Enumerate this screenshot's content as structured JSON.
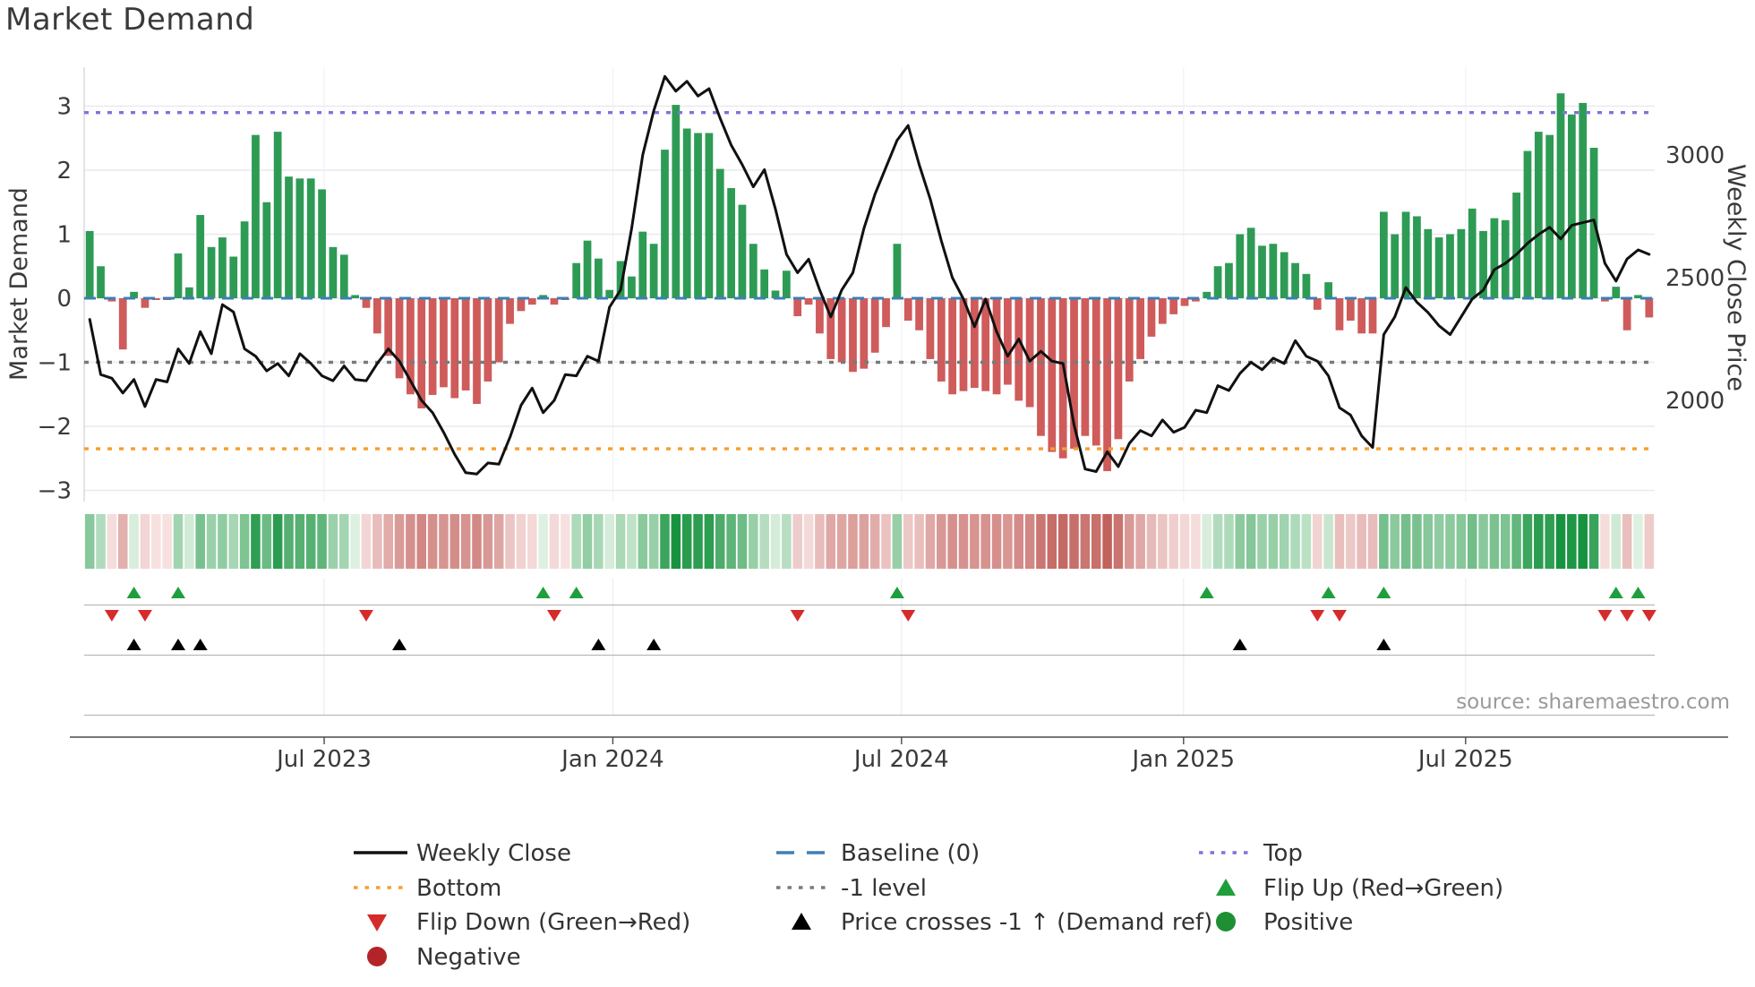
{
  "title": "Market Demand",
  "source": "source: sharemaestro.com",
  "axes": {
    "left_label": "Market Demand",
    "right_label": "Weekly Close Price",
    "left_ticks": [
      {
        "label": "3",
        "value": 3
      },
      {
        "label": "2",
        "value": 2
      },
      {
        "label": "1",
        "value": 1
      },
      {
        "label": "0",
        "value": 0
      },
      {
        "label": "−1",
        "value": -1
      },
      {
        "label": "−2",
        "value": -2
      },
      {
        "label": "−3",
        "value": -3
      }
    ],
    "right_ticks": [
      {
        "label": "3000",
        "value": 3000
      },
      {
        "label": "2500",
        "value": 2500
      },
      {
        "label": "2000",
        "value": 2000
      }
    ],
    "x_ticks": [
      {
        "label": "Jul 2023",
        "week": 21.2
      },
      {
        "label": "Jan 2024",
        "week": 47.3
      },
      {
        "label": "Jul 2024",
        "week": 73.4
      },
      {
        "label": "Jan 2025",
        "week": 98.9
      },
      {
        "label": "Jul 2025",
        "week": 124.4
      }
    ]
  },
  "chart_data": {
    "type": "bar+line",
    "x_unit": "weeks (Feb 2023 – Oct 2025)",
    "title": "Market Demand",
    "ylabel_left": "Market Demand",
    "ylabel_right": "Weekly Close Price",
    "ylim_left": [
      -3,
      3
    ],
    "grid": true,
    "legend_position": "bottom",
    "levels": {
      "top": 2.9,
      "baseline": 0,
      "minus1": -1,
      "bottom": -2.35
    },
    "series": [
      {
        "name": "Market Demand",
        "type": "bar",
        "axis": "left",
        "values": [
          1.05,
          0.5,
          -0.05,
          -0.8,
          0.1,
          -0.15,
          -0.02,
          -0.02,
          0.7,
          0.17,
          1.3,
          0.8,
          0.95,
          0.65,
          1.2,
          2.55,
          1.5,
          2.6,
          1.9,
          1.87,
          1.87,
          1.7,
          0.8,
          0.68,
          0.05,
          -0.15,
          -0.55,
          -0.9,
          -1.25,
          -1.5,
          -1.72,
          -1.51,
          -1.39,
          -1.56,
          -1.44,
          -1.65,
          -1.3,
          -1.0,
          -0.4,
          -0.2,
          -0.1,
          0.05,
          -0.1,
          -0.02,
          0.55,
          0.9,
          0.62,
          0.13,
          0.58,
          0.34,
          1.04,
          0.85,
          2.32,
          3.02,
          2.65,
          2.58,
          2.58,
          2.02,
          1.72,
          1.46,
          0.85,
          0.45,
          0.12,
          0.43,
          -0.28,
          -0.1,
          -0.55,
          -0.95,
          -1.0,
          -1.15,
          -1.1,
          -0.85,
          -0.45,
          0.85,
          -0.35,
          -0.5,
          -0.95,
          -1.3,
          -1.5,
          -1.45,
          -1.4,
          -1.45,
          -1.5,
          -1.35,
          -1.6,
          -1.7,
          -2.15,
          -2.4,
          -2.5,
          -2.35,
          -2.15,
          -2.3,
          -2.7,
          -2.2,
          -1.3,
          -0.95,
          -0.6,
          -0.4,
          -0.25,
          -0.12,
          -0.05,
          0.1,
          0.5,
          0.55,
          1.0,
          1.1,
          0.82,
          0.85,
          0.72,
          0.55,
          0.38,
          -0.18,
          0.25,
          -0.5,
          -0.35,
          -0.55,
          -0.55,
          1.35,
          1.0,
          1.35,
          1.28,
          1.08,
          0.95,
          1.0,
          1.08,
          1.4,
          1.05,
          1.25,
          1.22,
          1.65,
          2.3,
          2.6,
          2.55,
          3.2,
          2.87,
          3.05,
          2.35,
          -0.05,
          0.18,
          -0.5,
          0.05,
          -0.3
        ]
      },
      {
        "name": "Weekly Close",
        "type": "line",
        "axis": "right",
        "values": [
          2330,
          2105,
          2090,
          2030,
          2085,
          1975,
          2085,
          2075,
          2210,
          2150,
          2280,
          2190,
          2390,
          2360,
          2210,
          2180,
          2120,
          2150,
          2100,
          2190,
          2150,
          2100,
          2080,
          2140,
          2085,
          2080,
          2150,
          2210,
          2160,
          2080,
          2000,
          1950,
          1870,
          1780,
          1705,
          1700,
          1745,
          1740,
          1850,
          1980,
          2050,
          1950,
          2000,
          2105,
          2100,
          2180,
          2160,
          2380,
          2450,
          2700,
          3000,
          3180,
          3320,
          3260,
          3300,
          3240,
          3270,
          3150,
          3040,
          2960,
          2870,
          2940,
          2780,
          2595,
          2520,
          2575,
          2450,
          2340,
          2450,
          2520,
          2700,
          2840,
          2950,
          3060,
          3120,
          2960,
          2820,
          2650,
          2500,
          2413,
          2300,
          2413,
          2280,
          2180,
          2250,
          2160,
          2200,
          2160,
          2150,
          1900,
          1720,
          1710,
          1790,
          1730,
          1825,
          1877,
          1855,
          1920,
          1870,
          1890,
          1960,
          1950,
          2060,
          2040,
          2110,
          2155,
          2125,
          2172,
          2150,
          2243,
          2180,
          2160,
          2100,
          1970,
          1940,
          1855,
          1808,
          2268,
          2340,
          2460,
          2400,
          2358,
          2304,
          2268,
          2340,
          2413,
          2449,
          2533,
          2558,
          2595,
          2640,
          2676,
          2705,
          2658,
          2713,
          2724,
          2735,
          2558,
          2486,
          2576,
          2613,
          2595
        ]
      }
    ],
    "heatmap": {
      "note": "strip below chart encodes bar values (green positive / red negative, intensity = magnitude)"
    },
    "markers": {
      "flip_up_weeks": [
        4,
        8,
        41,
        44,
        73,
        101,
        112,
        117,
        138,
        140
      ],
      "flip_down_weeks": [
        2,
        5,
        25,
        42,
        64,
        74,
        111,
        113,
        137,
        139,
        141
      ],
      "price_cross_weeks": [
        4,
        8,
        10,
        28,
        46,
        51,
        104,
        117
      ]
    }
  },
  "legend": {
    "items": [
      {
        "label": "Weekly Close",
        "key": "weekly_close"
      },
      {
        "label": "Baseline (0)",
        "key": "baseline"
      },
      {
        "label": "Top",
        "key": "top"
      },
      {
        "label": "Bottom",
        "key": "bottom"
      },
      {
        "label": "-1 level",
        "key": "minus1"
      },
      {
        "label": "Flip Up (Red→Green)",
        "key": "flip_up"
      },
      {
        "label": "Flip Down (Green→Red)",
        "key": "flip_down"
      },
      {
        "label": "Price crosses -1 ↑ (Demand ref)",
        "key": "price_cross"
      },
      {
        "label": "Positive",
        "key": "positive"
      },
      {
        "label": "Negative",
        "key": "negative"
      }
    ]
  },
  "colors": {
    "bar_positive": "#2e9b55",
    "bar_negative": "#cf5b5b",
    "price_line": "#111111",
    "baseline": "#3d7fb5",
    "top_line": "#7d74d8",
    "bottom_line": "#f59e2f",
    "minus1_line": "#7a7a7a",
    "flip_up": "#1f9e3d",
    "flip_down": "#d62b2b",
    "price_cross": "#000000",
    "positive_dot": "#1e8f33",
    "negative_dot": "#b32428",
    "heat_green_dark": "#17933f",
    "heat_green_light": "#e8f5e9",
    "heat_red_dark": "#bd5752",
    "heat_red_light": "#f8e4e3",
    "grid": "#e9e9f0",
    "vgrid": "#ececf4",
    "spine": "#d6d6de",
    "marker_line": "#b9b9b9",
    "axis_line": "#4a4a4a",
    "text_dark": "#3a3a3a",
    "text_muted": "#9a9a9a"
  }
}
